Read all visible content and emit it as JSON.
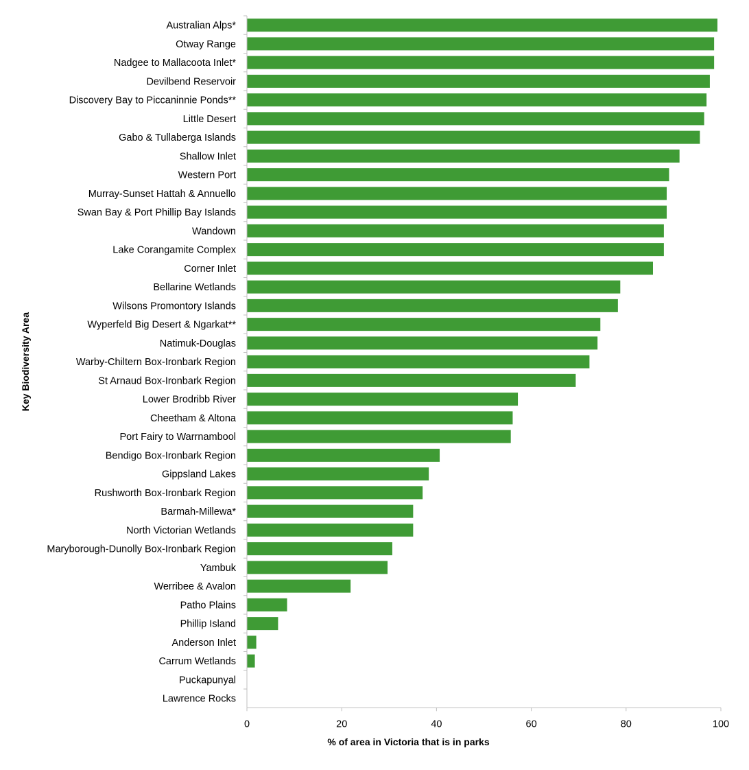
{
  "chart_data": {
    "type": "bar",
    "orientation": "horizontal",
    "ylabel": "Key Biodiversity Area",
    "xlabel": "% of area in Victoria that is in parks",
    "xlim": [
      0,
      100
    ],
    "xticks": [
      0,
      20,
      40,
      60,
      80,
      100
    ],
    "grid": false,
    "bar_color": "#3f9b35",
    "categories": [
      "Australian Alps*",
      "Otway Range",
      "Nadgee to Mallacoota Inlet*",
      "Devilbend Reservoir",
      "Discovery Bay to Piccaninnie Ponds**",
      "Little Desert",
      "Gabo & Tullaberga Islands",
      "Shallow Inlet",
      "Western Port",
      "Murray-Sunset Hattah & Annuello",
      "Swan Bay & Port Phillip Bay Islands",
      "Wandown",
      "Lake Corangamite Complex",
      "Corner Inlet",
      "Bellarine Wetlands",
      "Wilsons Promontory Islands",
      "Wyperfeld Big Desert & Ngarkat**",
      "Natimuk-Douglas",
      "Warby-Chiltern Box-Ironbark Region",
      "St Arnaud Box-Ironbark Region",
      "Lower Brodribb River",
      "Cheetham & Altona",
      "Port Fairy to Warrnambool",
      "Bendigo Box-Ironbark Region",
      "Gippsland Lakes",
      "Rushworth Box-Ironbark Region",
      "Barmah-Millewa*",
      "North Victorian Wetlands",
      "Maryborough-Dunolly Box-Ironbark Region",
      "Yambuk",
      "Werribee & Avalon",
      "Patho Plains",
      "Phillip Island",
      "Anderson Inlet",
      "Carrum Wetlands",
      "Puckapunyal",
      "Lawrence Rocks"
    ],
    "values": [
      99.2,
      98.5,
      98.5,
      97.6,
      96.9,
      96.4,
      95.5,
      91.2,
      89.0,
      88.5,
      88.5,
      87.9,
      87.9,
      85.6,
      78.7,
      78.2,
      74.5,
      73.9,
      72.2,
      69.3,
      57.1,
      56.0,
      55.6,
      40.6,
      38.3,
      37.0,
      35.0,
      35.0,
      30.6,
      29.6,
      21.8,
      8.4,
      6.5,
      1.9,
      1.6,
      0,
      0
    ]
  }
}
